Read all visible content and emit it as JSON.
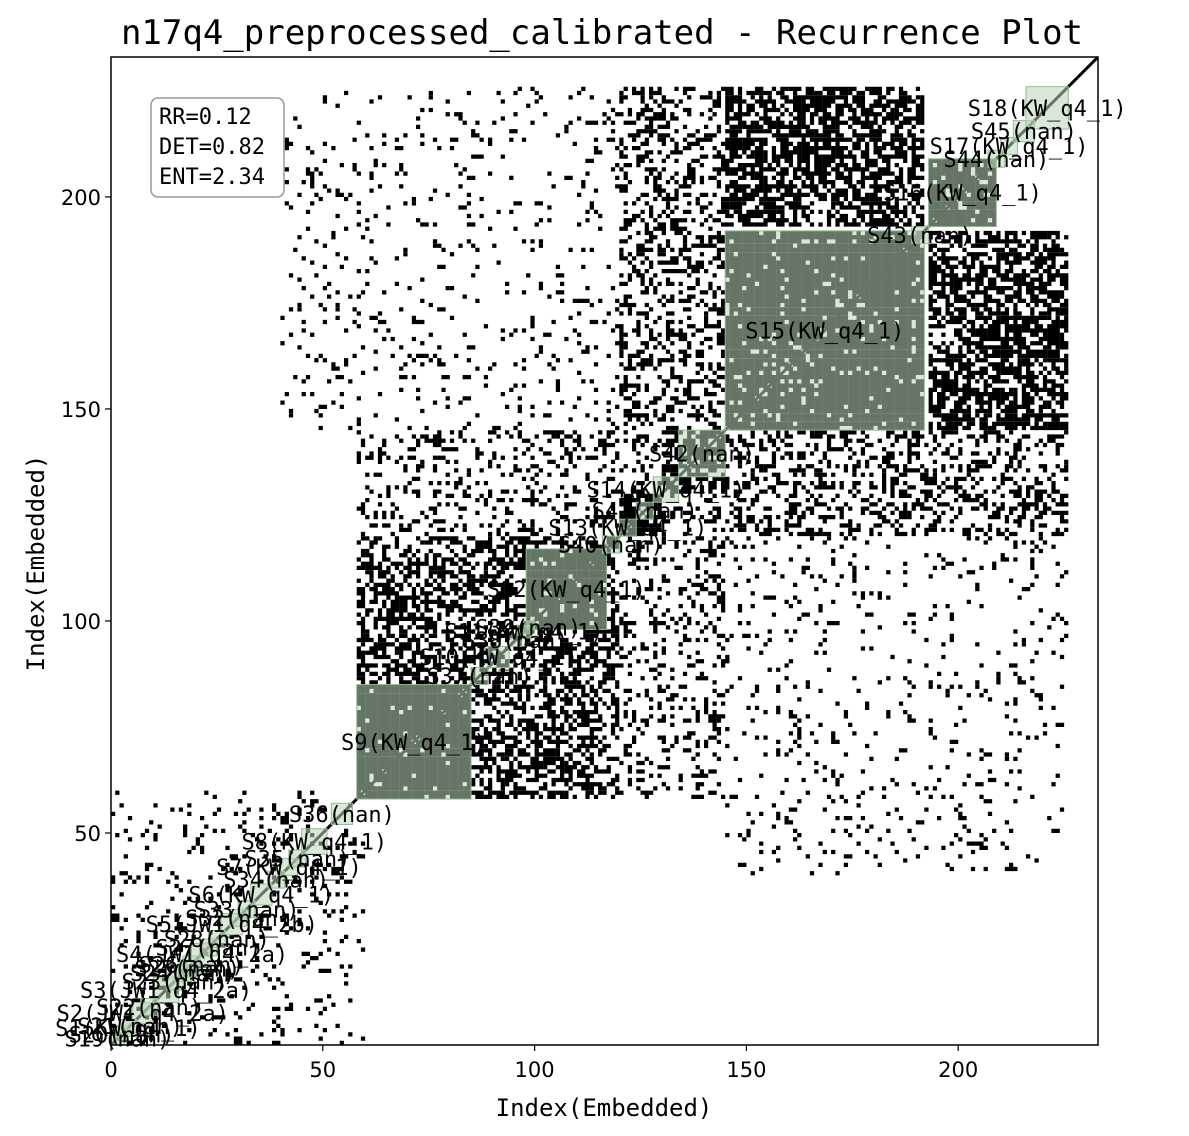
{
  "chart_data": {
    "type": "heatmap",
    "title": "n17q4_preprocessed_calibrated - Recurrence Plot",
    "xlabel": "Index(Embedded)",
    "ylabel": "Index(Embedded)",
    "xlim": [
      0,
      233
    ],
    "ylim": [
      0,
      233
    ],
    "xticks": [
      0,
      50,
      100,
      150,
      200
    ],
    "yticks": [
      50,
      100,
      150,
      200
    ],
    "grid": false,
    "colors": {
      "recurrence": "#000000",
      "segment_fill": "#b9d6b9",
      "segment_edge": "#8fbf8f"
    },
    "stats_box": {
      "placement": "top-left",
      "lines": [
        "RR=0.12",
        "DET=0.82",
        "ENT=2.34"
      ]
    },
    "segments": [
      {
        "label": "S1(KW_q4_1)",
        "start": 2,
        "end": 6
      },
      {
        "label": "S19(nan)",
        "start": 0,
        "end": 3
      },
      {
        "label": "S20(nan)",
        "start": 1,
        "end": 4
      },
      {
        "label": "S21(nan)",
        "start": 3,
        "end": 6
      },
      {
        "label": "S2(JW1_q4_2a)",
        "start": 5,
        "end": 10
      },
      {
        "label": "S22(nan)",
        "start": 7,
        "end": 11
      },
      {
        "label": "S3(JW1_q4_2a)",
        "start": 10,
        "end": 16
      },
      {
        "label": "S23(nan)",
        "start": 13,
        "end": 17
      },
      {
        "label": "S24(nan)",
        "start": 15,
        "end": 19
      },
      {
        "label": "S25(nan)",
        "start": 16,
        "end": 20
      },
      {
        "label": "S26(nan)",
        "start": 17,
        "end": 21
      },
      {
        "label": "S4(JW1_q4_2a)",
        "start": 19,
        "end": 24
      },
      {
        "label": "S27(nan)",
        "start": 21,
        "end": 25
      },
      {
        "label": "S28(nan)",
        "start": 23,
        "end": 27
      },
      {
        "label": "S5(JW1_q4_2b)",
        "start": 26,
        "end": 31
      },
      {
        "label": "S32(nan)",
        "start": 28,
        "end": 32
      },
      {
        "label": "S33(nan)",
        "start": 30,
        "end": 34
      },
      {
        "label": "S6(KW_q4_1)",
        "start": 33,
        "end": 38
      },
      {
        "label": "S34(nan)",
        "start": 37,
        "end": 41
      },
      {
        "label": "S7(KW_q4_1)",
        "start": 40,
        "end": 44
      },
      {
        "label": "S35(nan)",
        "start": 42,
        "end": 46
      },
      {
        "label": "S8(KW_q4_1)",
        "start": 45,
        "end": 51
      },
      {
        "label": "S36(nan)",
        "start": 52,
        "end": 57
      },
      {
        "label": "S9(KW_q4_1)",
        "start": 58,
        "end": 85
      },
      {
        "label": "S37(nan)",
        "start": 85,
        "end": 89
      },
      {
        "label": "S10(KW_q4_1)",
        "start": 89,
        "end": 94
      },
      {
        "label": "S38(nan)",
        "start": 94,
        "end": 97
      },
      {
        "label": "S11(KW_q4_1)",
        "start": 96,
        "end": 99
      },
      {
        "label": "S39(nan)",
        "start": 97,
        "end": 100
      },
      {
        "label": "S12(KW_q4_1)",
        "start": 98,
        "end": 117
      },
      {
        "label": "S40(nan)",
        "start": 116,
        "end": 120
      },
      {
        "label": "S13(KW_q4_1)",
        "start": 120,
        "end": 124
      },
      {
        "label": "S41(nan)",
        "start": 124,
        "end": 128
      },
      {
        "label": "S14(KW_q4_1)",
        "start": 128,
        "end": 134
      },
      {
        "label": "S42(nan)",
        "start": 134,
        "end": 145
      },
      {
        "label": "S15(KW_q4_1)",
        "start": 145,
        "end": 192
      },
      {
        "label": "S43(nan)",
        "start": 189,
        "end": 193
      },
      {
        "label": "S16(KW_q4_1)",
        "start": 193,
        "end": 209
      },
      {
        "label": "S44(nan)",
        "start": 207,
        "end": 211
      },
      {
        "label": "S17(KW_q4_1)",
        "start": 210,
        "end": 214
      },
      {
        "label": "S45(nan)",
        "start": 213,
        "end": 218
      },
      {
        "label": "S18(KW_q4_1)",
        "start": 216,
        "end": 226
      }
    ],
    "recurrence_blocks": [
      {
        "x": [
          145,
          192
        ],
        "y": [
          145,
          192
        ],
        "density": 0.7
      },
      {
        "x": [
          193,
          209
        ],
        "y": [
          193,
          209
        ],
        "density": 0.75
      },
      {
        "x": [
          145,
          192
        ],
        "y": [
          193,
          226
        ],
        "density": 0.4
      },
      {
        "x": [
          193,
          226
        ],
        "y": [
          145,
          192
        ],
        "density": 0.4
      },
      {
        "x": [
          120,
          145
        ],
        "y": [
          145,
          226
        ],
        "density": 0.2
      },
      {
        "x": [
          145,
          226
        ],
        "y": [
          120,
          145
        ],
        "density": 0.2
      },
      {
        "x": [
          58,
          85
        ],
        "y": [
          58,
          85
        ],
        "density": 0.7
      },
      {
        "x": [
          98,
          117
        ],
        "y": [
          98,
          117
        ],
        "density": 0.65
      },
      {
        "x": [
          58,
          120
        ],
        "y": [
          58,
          120
        ],
        "density": 0.3
      },
      {
        "x": [
          120,
          130
        ],
        "y": [
          120,
          130
        ],
        "density": 0.5
      },
      {
        "x": [
          130,
          145
        ],
        "y": [
          130,
          145
        ],
        "density": 0.4
      },
      {
        "x": [
          58,
          145
        ],
        "y": [
          120,
          145
        ],
        "density": 0.12
      },
      {
        "x": [
          120,
          145
        ],
        "y": [
          58,
          120
        ],
        "density": 0.12
      },
      {
        "x": [
          145,
          226
        ],
        "y": [
          40,
          120
        ],
        "density": 0.035
      },
      {
        "x": [
          40,
          120
        ],
        "y": [
          145,
          226
        ],
        "density": 0.035
      },
      {
        "x": [
          0,
          60
        ],
        "y": [
          0,
          60
        ],
        "density": 0.06
      }
    ]
  }
}
